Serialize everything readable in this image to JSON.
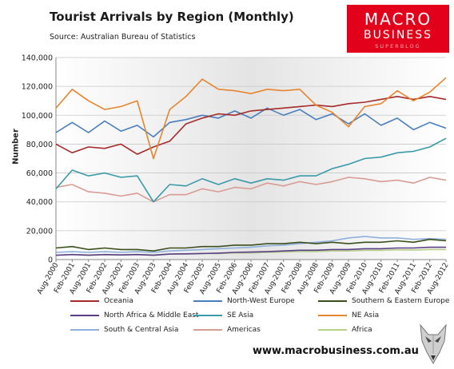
{
  "title": "Tourist Arrivals by Region (Monthly)",
  "subtitle": "Source: Australian Bureau of Statistics",
  "logo": {
    "line1": "MACRO",
    "line2": "BUSINESS",
    "line3": "SUPERBLOG"
  },
  "website": "www.macrobusiness.com.au",
  "colors": {
    "oceania": "#a52b2a",
    "north_west_europe": "#4a7ebb",
    "southern_eastern_europe": "#3a4f1c",
    "north_africa_middle_east": "#5b3f86",
    "se_asia": "#3a9aa8",
    "ne_asia": "#e8852f",
    "south_central_asia": "#8fb0dc",
    "americas": "#d99b94",
    "africa": "#b7cf8a"
  },
  "chart_data": {
    "type": "line",
    "title": "Tourist Arrivals by Region (Monthly)",
    "subtitle": "Source: Australian Bureau of Statistics",
    "xlabel": "",
    "ylabel": "Number",
    "ylim": [
      0,
      140000
    ],
    "y_ticks": [
      "0",
      "20,000",
      "40,000",
      "60,000",
      "80,000",
      "100,000",
      "120,000",
      "140,000"
    ],
    "x_range": [
      "Aug-2000",
      "Aug-2012"
    ],
    "x_tick_labels": [
      "Aug-2000",
      "Feb-2001",
      "Aug-2001",
      "Feb-2002",
      "Aug-2002",
      "Feb-2003",
      "Aug-2003",
      "Feb-2004",
      "Aug-2004",
      "Feb-2005",
      "Aug-2005",
      "Feb-2006",
      "Aug-2006",
      "Feb-2007",
      "Aug-2007",
      "Feb-2008",
      "Aug-2008",
      "Feb-2009",
      "Aug-2009",
      "Feb-2010",
      "Aug-2010",
      "Feb-2011",
      "Aug-2011",
      "Feb-2012",
      "Aug-2012"
    ],
    "grid": true,
    "legend_position": "bottom",
    "series": [
      {
        "name": "Oceania",
        "points": [
          [
            "Aug-2000",
            80000
          ],
          [
            "Feb-2001",
            74000
          ],
          [
            "Aug-2001",
            78000
          ],
          [
            "Feb-2002",
            77000
          ],
          [
            "Aug-2002",
            80000
          ],
          [
            "Feb-2003",
            73000
          ],
          [
            "Aug-2003",
            78000
          ],
          [
            "Feb-2004",
            82000
          ],
          [
            "Aug-2004",
            94000
          ],
          [
            "Feb-2005",
            98000
          ],
          [
            "Aug-2005",
            101000
          ],
          [
            "Feb-2006",
            100000
          ],
          [
            "Aug-2006",
            103000
          ],
          [
            "Feb-2007",
            104000
          ],
          [
            "Aug-2007",
            105000
          ],
          [
            "Feb-2008",
            106000
          ],
          [
            "Aug-2008",
            107000
          ],
          [
            "Feb-2009",
            106000
          ],
          [
            "Aug-2009",
            108000
          ],
          [
            "Feb-2010",
            109000
          ],
          [
            "Aug-2010",
            111000
          ],
          [
            "Feb-2011",
            113000
          ],
          [
            "Aug-2011",
            111000
          ],
          [
            "Feb-2012",
            113000
          ],
          [
            "Aug-2012",
            111000
          ]
        ]
      },
      {
        "name": "North-West Europe",
        "points": [
          [
            "Aug-2000",
            88000
          ],
          [
            "Feb-2001",
            95000
          ],
          [
            "Aug-2001",
            88000
          ],
          [
            "Feb-2002",
            96000
          ],
          [
            "Aug-2002",
            89000
          ],
          [
            "Feb-2003",
            93000
          ],
          [
            "Aug-2003",
            85000
          ],
          [
            "Feb-2004",
            95000
          ],
          [
            "Aug-2004",
            97000
          ],
          [
            "Feb-2005",
            100000
          ],
          [
            "Aug-2005",
            98000
          ],
          [
            "Feb-2006",
            103000
          ],
          [
            "Aug-2006",
            98000
          ],
          [
            "Feb-2007",
            105000
          ],
          [
            "Aug-2007",
            100000
          ],
          [
            "Feb-2008",
            104000
          ],
          [
            "Aug-2008",
            97000
          ],
          [
            "Feb-2009",
            101000
          ],
          [
            "Aug-2009",
            94000
          ],
          [
            "Feb-2010",
            101000
          ],
          [
            "Aug-2010",
            93000
          ],
          [
            "Feb-2011",
            98000
          ],
          [
            "Aug-2011",
            90000
          ],
          [
            "Feb-2012",
            95000
          ],
          [
            "Aug-2012",
            91000
          ]
        ]
      },
      {
        "name": "Southern & Eastern Europe",
        "points": [
          [
            "Aug-2000",
            8000
          ],
          [
            "Feb-2001",
            9000
          ],
          [
            "Aug-2001",
            7000
          ],
          [
            "Feb-2002",
            8000
          ],
          [
            "Aug-2002",
            7000
          ],
          [
            "Feb-2003",
            7000
          ],
          [
            "Aug-2003",
            6000
          ],
          [
            "Feb-2004",
            8000
          ],
          [
            "Aug-2004",
            8000
          ],
          [
            "Feb-2005",
            9000
          ],
          [
            "Aug-2005",
            9000
          ],
          [
            "Feb-2006",
            10000
          ],
          [
            "Aug-2006",
            10000
          ],
          [
            "Feb-2007",
            11000
          ],
          [
            "Aug-2007",
            11000
          ],
          [
            "Feb-2008",
            12000
          ],
          [
            "Aug-2008",
            11000
          ],
          [
            "Feb-2009",
            12000
          ],
          [
            "Aug-2009",
            11000
          ],
          [
            "Feb-2010",
            12000
          ],
          [
            "Aug-2010",
            12000
          ],
          [
            "Feb-2011",
            13000
          ],
          [
            "Aug-2011",
            12000
          ],
          [
            "Feb-2012",
            14000
          ],
          [
            "Aug-2012",
            13000
          ]
        ]
      },
      {
        "name": "North Africa & Middle East",
        "points": [
          [
            "Aug-2000",
            3000
          ],
          [
            "Feb-2001",
            3500
          ],
          [
            "Aug-2001",
            3000
          ],
          [
            "Feb-2002",
            3500
          ],
          [
            "Aug-2002",
            3200
          ],
          [
            "Feb-2003",
            3500
          ],
          [
            "Aug-2003",
            3000
          ],
          [
            "Feb-2004",
            3800
          ],
          [
            "Aug-2004",
            4000
          ],
          [
            "Feb-2005",
            4200
          ],
          [
            "Aug-2005",
            4500
          ],
          [
            "Feb-2006",
            5000
          ],
          [
            "Aug-2006",
            5200
          ],
          [
            "Feb-2007",
            5500
          ],
          [
            "Aug-2007",
            6000
          ],
          [
            "Feb-2008",
            6500
          ],
          [
            "Aug-2008",
            6500
          ],
          [
            "Feb-2009",
            7000
          ],
          [
            "Aug-2009",
            7000
          ],
          [
            "Feb-2010",
            7500
          ],
          [
            "Aug-2010",
            7500
          ],
          [
            "Feb-2011",
            8000
          ],
          [
            "Aug-2011",
            8000
          ],
          [
            "Feb-2012",
            8500
          ],
          [
            "Aug-2012",
            8500
          ]
        ]
      },
      {
        "name": "SE Asia",
        "points": [
          [
            "Aug-2000",
            49000
          ],
          [
            "Feb-2001",
            62000
          ],
          [
            "Aug-2001",
            58000
          ],
          [
            "Feb-2002",
            60000
          ],
          [
            "Aug-2002",
            57000
          ],
          [
            "Feb-2003",
            58000
          ],
          [
            "Aug-2003",
            40000
          ],
          [
            "Feb-2004",
            52000
          ],
          [
            "Aug-2004",
            51000
          ],
          [
            "Feb-2005",
            56000
          ],
          [
            "Aug-2005",
            52000
          ],
          [
            "Feb-2006",
            56000
          ],
          [
            "Aug-2006",
            53000
          ],
          [
            "Feb-2007",
            56000
          ],
          [
            "Aug-2007",
            55000
          ],
          [
            "Feb-2008",
            58000
          ],
          [
            "Aug-2008",
            58000
          ],
          [
            "Feb-2009",
            63000
          ],
          [
            "Aug-2009",
            66000
          ],
          [
            "Feb-2010",
            70000
          ],
          [
            "Aug-2010",
            71000
          ],
          [
            "Feb-2011",
            74000
          ],
          [
            "Aug-2011",
            75000
          ],
          [
            "Feb-2012",
            78000
          ],
          [
            "Aug-2012",
            84000
          ]
        ]
      },
      {
        "name": "NE Asia",
        "points": [
          [
            "Aug-2000",
            105000
          ],
          [
            "Feb-2001",
            118000
          ],
          [
            "Aug-2001",
            110000
          ],
          [
            "Feb-2002",
            104000
          ],
          [
            "Aug-2002",
            106000
          ],
          [
            "Feb-2003",
            110000
          ],
          [
            "Aug-2003",
            70000
          ],
          [
            "Feb-2004",
            104000
          ],
          [
            "Aug-2004",
            113000
          ],
          [
            "Feb-2005",
            125000
          ],
          [
            "Aug-2005",
            118000
          ],
          [
            "Feb-2006",
            117000
          ],
          [
            "Aug-2006",
            115000
          ],
          [
            "Feb-2007",
            118000
          ],
          [
            "Aug-2007",
            117000
          ],
          [
            "Feb-2008",
            118000
          ],
          [
            "Aug-2008",
            107000
          ],
          [
            "Feb-2009",
            102000
          ],
          [
            "Aug-2009",
            92000
          ],
          [
            "Feb-2010",
            106000
          ],
          [
            "Aug-2010",
            108000
          ],
          [
            "Feb-2011",
            117000
          ],
          [
            "Aug-2011",
            110000
          ],
          [
            "Feb-2012",
            116000
          ],
          [
            "Aug-2012",
            126000
          ]
        ]
      },
      {
        "name": "South & Central Asia",
        "points": [
          [
            "Aug-2000",
            5000
          ],
          [
            "Feb-2001",
            5500
          ],
          [
            "Aug-2001",
            5000
          ],
          [
            "Feb-2002",
            5500
          ],
          [
            "Aug-2002",
            5000
          ],
          [
            "Feb-2003",
            5500
          ],
          [
            "Aug-2003",
            5000
          ],
          [
            "Feb-2004",
            6000
          ],
          [
            "Aug-2004",
            6500
          ],
          [
            "Feb-2005",
            7000
          ],
          [
            "Aug-2005",
            7500
          ],
          [
            "Feb-2006",
            8000
          ],
          [
            "Aug-2006",
            8500
          ],
          [
            "Feb-2007",
            9500
          ],
          [
            "Aug-2007",
            10000
          ],
          [
            "Feb-2008",
            11000
          ],
          [
            "Aug-2008",
            12000
          ],
          [
            "Feb-2009",
            13000
          ],
          [
            "Aug-2009",
            15000
          ],
          [
            "Feb-2010",
            16000
          ],
          [
            "Aug-2010",
            15000
          ],
          [
            "Feb-2011",
            15000
          ],
          [
            "Aug-2011",
            14000
          ],
          [
            "Feb-2012",
            14500
          ],
          [
            "Aug-2012",
            14000
          ]
        ]
      },
      {
        "name": "Americas",
        "points": [
          [
            "Aug-2000",
            50000
          ],
          [
            "Feb-2001",
            52000
          ],
          [
            "Aug-2001",
            47000
          ],
          [
            "Feb-2002",
            46000
          ],
          [
            "Aug-2002",
            44000
          ],
          [
            "Feb-2003",
            46000
          ],
          [
            "Aug-2003",
            40000
          ],
          [
            "Feb-2004",
            45000
          ],
          [
            "Aug-2004",
            45000
          ],
          [
            "Feb-2005",
            49000
          ],
          [
            "Aug-2005",
            47000
          ],
          [
            "Feb-2006",
            50000
          ],
          [
            "Aug-2006",
            49000
          ],
          [
            "Feb-2007",
            53000
          ],
          [
            "Aug-2007",
            51000
          ],
          [
            "Feb-2008",
            54000
          ],
          [
            "Aug-2008",
            52000
          ],
          [
            "Feb-2009",
            54000
          ],
          [
            "Aug-2009",
            57000
          ],
          [
            "Feb-2010",
            56000
          ],
          [
            "Aug-2010",
            54000
          ],
          [
            "Feb-2011",
            55000
          ],
          [
            "Aug-2011",
            53000
          ],
          [
            "Feb-2012",
            57000
          ],
          [
            "Aug-2012",
            55000
          ]
        ]
      },
      {
        "name": "Africa",
        "points": [
          [
            "Aug-2000",
            3000
          ],
          [
            "Feb-2001",
            3500
          ],
          [
            "Aug-2001",
            3200
          ],
          [
            "Feb-2002",
            3400
          ],
          [
            "Aug-2002",
            3200
          ],
          [
            "Feb-2003",
            3500
          ],
          [
            "Aug-2003",
            3200
          ],
          [
            "Feb-2004",
            3800
          ],
          [
            "Aug-2004",
            3800
          ],
          [
            "Feb-2005",
            4200
          ],
          [
            "Aug-2005",
            4200
          ],
          [
            "Feb-2006",
            4600
          ],
          [
            "Aug-2006",
            4600
          ],
          [
            "Feb-2007",
            5000
          ],
          [
            "Aug-2007",
            5200
          ],
          [
            "Feb-2008",
            5600
          ],
          [
            "Aug-2008",
            5600
          ],
          [
            "Feb-2009",
            6000
          ],
          [
            "Aug-2009",
            6000
          ],
          [
            "Feb-2010",
            6400
          ],
          [
            "Aug-2010",
            6400
          ],
          [
            "Feb-2011",
            6800
          ],
          [
            "Aug-2011",
            6600
          ],
          [
            "Feb-2012",
            7000
          ],
          [
            "Aug-2012",
            7000
          ]
        ]
      }
    ]
  }
}
